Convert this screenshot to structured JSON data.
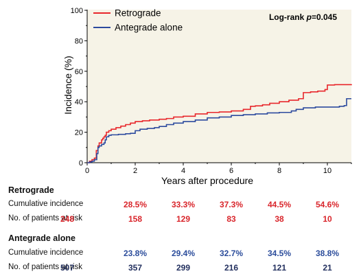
{
  "chart_data": {
    "type": "line",
    "xlabel": "Years after procedure",
    "ylabel": "Incidence (%)",
    "xlim": [
      0,
      11
    ],
    "ylim": [
      0,
      100
    ],
    "xticks": [
      "0",
      "2",
      "4",
      "6",
      "8",
      "10"
    ],
    "yticks": [
      "0",
      "20",
      "40",
      "60",
      "80",
      "100"
    ],
    "annotation_prefix": "Log-rank ",
    "annotation_p": "p",
    "annotation_value": "=0.045",
    "legend_position": "top-left",
    "series": [
      {
        "name": "Retrograde",
        "color": "#e8262b",
        "points": [
          [
            0,
            0
          ],
          [
            0.1,
            1
          ],
          [
            0.2,
            2
          ],
          [
            0.3,
            3
          ],
          [
            0.38,
            8
          ],
          [
            0.45,
            11
          ],
          [
            0.5,
            13
          ],
          [
            0.6,
            15
          ],
          [
            0.65,
            16
          ],
          [
            0.7,
            17
          ],
          [
            0.75,
            18
          ],
          [
            0.8,
            20
          ],
          [
            0.9,
            21
          ],
          [
            1.0,
            22
          ],
          [
            1.2,
            23
          ],
          [
            1.4,
            24
          ],
          [
            1.6,
            25
          ],
          [
            1.8,
            26
          ],
          [
            2.0,
            27
          ],
          [
            2.3,
            27.5
          ],
          [
            2.6,
            28
          ],
          [
            3.0,
            28.5
          ],
          [
            3.3,
            29
          ],
          [
            3.6,
            30
          ],
          [
            4.0,
            30.5
          ],
          [
            4.5,
            32
          ],
          [
            5.0,
            33
          ],
          [
            5.5,
            33.3
          ],
          [
            6.0,
            34
          ],
          [
            6.5,
            35
          ],
          [
            6.8,
            37
          ],
          [
            7.0,
            37.3
          ],
          [
            7.3,
            38
          ],
          [
            7.6,
            39
          ],
          [
            8.0,
            40
          ],
          [
            8.4,
            41
          ],
          [
            8.8,
            42
          ],
          [
            9.0,
            46
          ],
          [
            9.3,
            46.5
          ],
          [
            9.6,
            47
          ],
          [
            9.9,
            48
          ],
          [
            10.0,
            51
          ],
          [
            10.3,
            51.2
          ],
          [
            11.0,
            51.5
          ]
        ]
      },
      {
        "name": "Antegrade alone",
        "color": "#2c4a9e",
        "points": [
          [
            0,
            0
          ],
          [
            0.1,
            0.5
          ],
          [
            0.2,
            1
          ],
          [
            0.3,
            2
          ],
          [
            0.4,
            6
          ],
          [
            0.45,
            10
          ],
          [
            0.5,
            11
          ],
          [
            0.6,
            12
          ],
          [
            0.7,
            13
          ],
          [
            0.75,
            15
          ],
          [
            0.8,
            17
          ],
          [
            0.9,
            18
          ],
          [
            1.0,
            18.3
          ],
          [
            1.3,
            18.6
          ],
          [
            1.6,
            19
          ],
          [
            1.8,
            19.3
          ],
          [
            2.0,
            21
          ],
          [
            2.2,
            22
          ],
          [
            2.5,
            22.5
          ],
          [
            2.8,
            23
          ],
          [
            3.0,
            23.8
          ],
          [
            3.3,
            25
          ],
          [
            3.6,
            26
          ],
          [
            4.0,
            27
          ],
          [
            4.5,
            28
          ],
          [
            5.0,
            29.4
          ],
          [
            5.5,
            30
          ],
          [
            6.0,
            31
          ],
          [
            6.5,
            31.5
          ],
          [
            7.0,
            32
          ],
          [
            7.5,
            32.7
          ],
          [
            8.0,
            33
          ],
          [
            8.5,
            34
          ],
          [
            8.7,
            35
          ],
          [
            9.0,
            36
          ],
          [
            9.5,
            36.5
          ],
          [
            10.0,
            36.5
          ],
          [
            10.5,
            37
          ],
          [
            10.7,
            37.5
          ],
          [
            10.8,
            42
          ],
          [
            11.0,
            42
          ]
        ]
      }
    ]
  },
  "table": {
    "cols_x_years": [
      0,
      2,
      4,
      6,
      8,
      10
    ],
    "retrograde": {
      "title": "Retrograde",
      "ci_label": "Cumulative incidence",
      "ci_values": [
        "28.5%",
        "33.3%",
        "37.3%",
        "44.5%",
        "54.6%"
      ],
      "risk_label": "No. of patients at risk",
      "risk_values": [
        "248",
        "158",
        "129",
        "83",
        "38",
        "10"
      ]
    },
    "antegrade": {
      "title": "Antegrade alone",
      "ci_label": "Cumulative incidence",
      "ci_values": [
        "23.8%",
        "29.4%",
        "32.7%",
        "34.5%",
        "38.8%"
      ],
      "risk_label": "No. of patients at risk",
      "risk_values": [
        "507",
        "357",
        "299",
        "216",
        "121",
        "21"
      ]
    }
  }
}
